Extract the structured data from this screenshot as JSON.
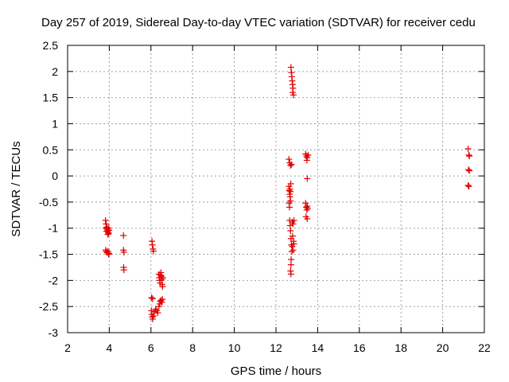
{
  "chart_data": {
    "type": "scatter",
    "title": "Day 257 of 2019, Sidereal Day-to-day VTEC variation (SDTVAR) for receiver cedu",
    "xlabel": "GPS time / hours",
    "ylabel": "SDTVAR / TECUs",
    "xlim": [
      2,
      22
    ],
    "ylim": [
      -3,
      2.5
    ],
    "x_ticks": [
      2,
      4,
      6,
      8,
      10,
      12,
      14,
      16,
      18,
      20,
      22
    ],
    "y_ticks": [
      -3,
      -2.5,
      -2,
      -1.5,
      -1,
      -0.5,
      0,
      0.5,
      1,
      1.5,
      2,
      2.5
    ],
    "x_tick_labels": [
      "2",
      "4",
      "6",
      "8",
      "10",
      "12",
      "14",
      "16",
      "18",
      "20",
      "22"
    ],
    "y_tick_labels": [
      "-3",
      "-2.5",
      "-2",
      "-1.5",
      "-1",
      "-0.5",
      "0",
      "0.5",
      "1",
      "1.5",
      "2",
      "2.5"
    ],
    "grid": true,
    "marker": "+",
    "marker_color": "#e00000",
    "series": [
      {
        "name": "SDTVAR",
        "points": [
          [
            3.82,
            -0.85
          ],
          [
            3.85,
            -0.92
          ],
          [
            3.88,
            -0.98
          ],
          [
            3.9,
            -1.02
          ],
          [
            3.92,
            -1.05
          ],
          [
            3.95,
            -1.08
          ],
          [
            3.97,
            -1.1
          ],
          [
            3.84,
            -1.0
          ],
          [
            3.87,
            -1.06
          ],
          [
            3.93,
            -1.12
          ],
          [
            3.96,
            -1.0
          ],
          [
            3.99,
            -1.04
          ],
          [
            3.83,
            -1.42
          ],
          [
            3.86,
            -1.45
          ],
          [
            3.9,
            -1.47
          ],
          [
            3.94,
            -1.44
          ],
          [
            3.97,
            -1.5
          ],
          [
            3.99,
            -1.48
          ],
          [
            4.68,
            -1.14
          ],
          [
            4.68,
            -1.42
          ],
          [
            4.7,
            -1.46
          ],
          [
            4.69,
            -1.75
          ],
          [
            4.7,
            -1.8
          ],
          [
            6.05,
            -1.25
          ],
          [
            6.07,
            -1.32
          ],
          [
            6.1,
            -1.4
          ],
          [
            6.12,
            -1.44
          ],
          [
            6.03,
            -2.33
          ],
          [
            6.08,
            -2.35
          ],
          [
            6.02,
            -2.58
          ],
          [
            6.04,
            -2.65
          ],
          [
            6.06,
            -2.7
          ],
          [
            6.08,
            -2.74
          ],
          [
            6.12,
            -2.68
          ],
          [
            6.15,
            -2.6
          ],
          [
            6.22,
            -2.55
          ],
          [
            6.28,
            -2.58
          ],
          [
            6.33,
            -2.62
          ],
          [
            6.38,
            -2.5
          ],
          [
            6.42,
            -2.45
          ],
          [
            6.45,
            -2.4
          ],
          [
            6.48,
            -2.38
          ],
          [
            6.52,
            -2.42
          ],
          [
            6.55,
            -2.36
          ],
          [
            6.38,
            -1.88
          ],
          [
            6.4,
            -1.95
          ],
          [
            6.42,
            -2.0
          ],
          [
            6.44,
            -2.05
          ],
          [
            6.46,
            -1.9
          ],
          [
            6.48,
            -1.85
          ],
          [
            6.5,
            -1.92
          ],
          [
            6.52,
            -1.98
          ],
          [
            6.54,
            -2.08
          ],
          [
            6.56,
            -2.12
          ],
          [
            6.58,
            -1.95
          ],
          [
            12.62,
            0.32
          ],
          [
            12.66,
            0.25
          ],
          [
            12.7,
            0.2
          ],
          [
            12.74,
            0.22
          ],
          [
            12.62,
            -0.2
          ],
          [
            12.64,
            -0.28
          ],
          [
            12.66,
            -0.35
          ],
          [
            12.68,
            -0.4
          ],
          [
            12.7,
            -0.48
          ],
          [
            12.63,
            -0.52
          ],
          [
            12.65,
            -0.6
          ],
          [
            12.67,
            -0.25
          ],
          [
            12.69,
            -0.3
          ],
          [
            12.71,
            -0.15
          ],
          [
            12.66,
            -0.85
          ],
          [
            12.68,
            -0.95
          ],
          [
            12.7,
            -1.05
          ],
          [
            12.72,
            -1.2
          ],
          [
            12.74,
            -1.32
          ],
          [
            12.76,
            -1.45
          ],
          [
            12.73,
            -1.6
          ],
          [
            12.72,
            -1.7
          ],
          [
            12.7,
            -1.82
          ],
          [
            12.72,
            -1.88
          ],
          [
            12.78,
            -0.88
          ],
          [
            12.82,
            -0.92
          ],
          [
            12.86,
            -0.85
          ],
          [
            12.8,
            -1.15
          ],
          [
            12.84,
            -1.25
          ],
          [
            12.78,
            -1.35
          ],
          [
            12.82,
            -1.42
          ],
          [
            12.86,
            -1.3
          ],
          [
            12.72,
            2.08
          ],
          [
            12.74,
            1.98
          ],
          [
            12.76,
            1.9
          ],
          [
            12.78,
            1.82
          ],
          [
            12.8,
            1.75
          ],
          [
            12.82,
            1.68
          ],
          [
            12.8,
            1.6
          ],
          [
            12.84,
            1.55
          ],
          [
            13.42,
            0.42
          ],
          [
            13.46,
            0.38
          ],
          [
            13.5,
            0.35
          ],
          [
            13.54,
            0.4
          ],
          [
            13.48,
            0.3
          ],
          [
            13.5,
            -0.05
          ],
          [
            13.42,
            -0.52
          ],
          [
            13.45,
            -0.6
          ],
          [
            13.48,
            -0.65
          ],
          [
            13.52,
            -0.62
          ],
          [
            13.5,
            -0.58
          ],
          [
            13.44,
            -0.78
          ],
          [
            13.5,
            -0.82
          ],
          [
            21.22,
            0.52
          ],
          [
            21.26,
            0.4
          ],
          [
            21.28,
            0.38
          ],
          [
            21.24,
            0.12
          ],
          [
            21.28,
            0.1
          ],
          [
            21.22,
            -0.18
          ],
          [
            21.26,
            -0.2
          ]
        ]
      }
    ]
  }
}
